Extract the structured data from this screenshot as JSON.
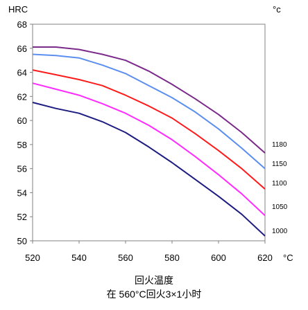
{
  "chart_data": {
    "type": "line",
    "title": "",
    "ylabel": "HRC",
    "right_unit": "°c",
    "x_unit": "°C",
    "xlabel": "回火温度",
    "subtitle": "在 560°C回火3×1小时",
    "xlim": [
      520,
      620
    ],
    "ylim": [
      50,
      68
    ],
    "x_ticks": [
      520,
      540,
      560,
      580,
      600,
      620
    ],
    "y_ticks": [
      50,
      52,
      54,
      56,
      58,
      60,
      62,
      64,
      66,
      68
    ],
    "grid": false,
    "x": [
      520,
      530,
      540,
      550,
      560,
      570,
      580,
      590,
      600,
      610,
      620
    ],
    "series": [
      {
        "name": "1180",
        "color": "#7b2a8a",
        "values": [
          66.1,
          66.1,
          65.9,
          65.5,
          65.0,
          64.1,
          63.0,
          61.8,
          60.5,
          59.0,
          57.3
        ]
      },
      {
        "name": "1150",
        "color": "#5a8ef0",
        "values": [
          65.5,
          65.4,
          65.2,
          64.6,
          63.9,
          62.9,
          61.9,
          60.7,
          59.3,
          57.7,
          56.0
        ]
      },
      {
        "name": "1100",
        "color": "#ff1a1a",
        "values": [
          64.2,
          63.8,
          63.4,
          62.9,
          62.1,
          61.2,
          60.2,
          58.9,
          57.5,
          56.0,
          54.3
        ]
      },
      {
        "name": "1050",
        "color": "#ff2bff",
        "values": [
          63.1,
          62.6,
          62.1,
          61.4,
          60.6,
          59.6,
          58.4,
          57.0,
          55.5,
          53.9,
          52.1
        ]
      },
      {
        "name": "1000",
        "color": "#1c1c80",
        "values": [
          61.5,
          61.0,
          60.6,
          59.9,
          59.0,
          57.8,
          56.5,
          55.1,
          53.7,
          52.2,
          50.4
        ]
      }
    ]
  }
}
